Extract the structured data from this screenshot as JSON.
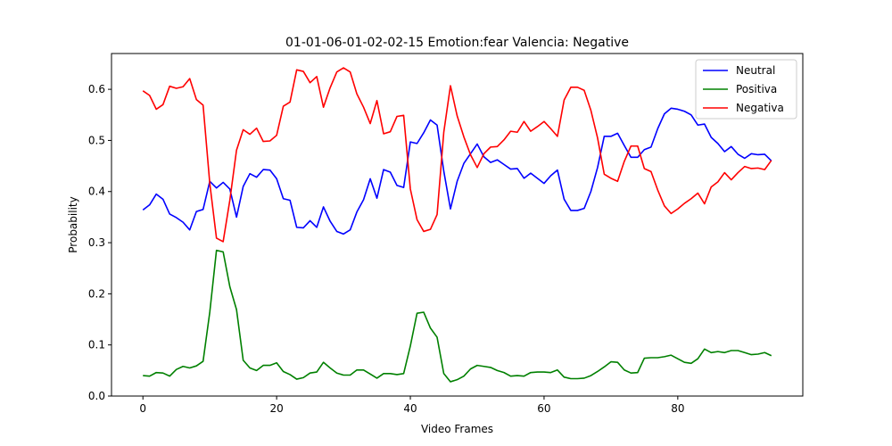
{
  "chart_data": {
    "type": "line",
    "title": "01-01-06-01-02-02-15 Emotion:fear Valencia: Negative",
    "xlabel": "Video Frames",
    "ylabel": "Probability",
    "xlim": [
      -4.7,
      98.7
    ],
    "ylim": [
      0.0,
      0.67
    ],
    "xticks": [
      0,
      20,
      40,
      60,
      80
    ],
    "yticks": [
      0.0,
      0.1,
      0.2,
      0.3,
      0.4,
      0.5,
      0.6
    ],
    "legend_position": "upper-right",
    "grid": false,
    "x": [
      0,
      1,
      2,
      3,
      4,
      5,
      6,
      7,
      8,
      9,
      10,
      11,
      12,
      13,
      14,
      15,
      16,
      17,
      18,
      19,
      20,
      21,
      22,
      23,
      24,
      25,
      26,
      27,
      28,
      29,
      30,
      31,
      32,
      33,
      34,
      35,
      36,
      37,
      38,
      39,
      40,
      41,
      42,
      43,
      44,
      45,
      46,
      47,
      48,
      49,
      50,
      51,
      52,
      53,
      54,
      55,
      56,
      57,
      58,
      59,
      60,
      61,
      62,
      63,
      64,
      65,
      66,
      67,
      68,
      69,
      70,
      71,
      72,
      73,
      74,
      75,
      76,
      77,
      78,
      79,
      80,
      81,
      82,
      83,
      84,
      85,
      86,
      87,
      88,
      89,
      90,
      91,
      92,
      93,
      94
    ],
    "series": [
      {
        "name": "Neutral",
        "color": "#0000ff",
        "values": [
          0.364,
          0.374,
          0.395,
          0.385,
          0.356,
          0.349,
          0.34,
          0.325,
          0.361,
          0.365,
          0.42,
          0.407,
          0.418,
          0.405,
          0.35,
          0.41,
          0.435,
          0.428,
          0.443,
          0.442,
          0.425,
          0.386,
          0.383,
          0.33,
          0.329,
          0.343,
          0.33,
          0.37,
          0.342,
          0.322,
          0.317,
          0.325,
          0.36,
          0.384,
          0.425,
          0.387,
          0.443,
          0.438,
          0.412,
          0.408,
          0.497,
          0.494,
          0.515,
          0.54,
          0.53,
          0.44,
          0.366,
          0.42,
          0.455,
          0.474,
          0.493,
          0.468,
          0.457,
          0.462,
          0.453,
          0.444,
          0.445,
          0.426,
          0.436,
          0.426,
          0.416,
          0.431,
          0.442,
          0.385,
          0.363,
          0.363,
          0.367,
          0.4,
          0.447,
          0.508,
          0.508,
          0.514,
          0.49,
          0.467,
          0.467,
          0.482,
          0.487,
          0.523,
          0.552,
          0.563,
          0.561,
          0.557,
          0.55,
          0.53,
          0.532,
          0.506,
          0.494,
          0.478,
          0.488,
          0.473,
          0.465,
          0.474,
          0.472,
          0.473,
          0.46
        ]
      },
      {
        "name": "Positiva",
        "color": "#008000",
        "values": [
          0.04,
          0.039,
          0.046,
          0.045,
          0.039,
          0.052,
          0.058,
          0.055,
          0.059,
          0.068,
          0.164,
          0.285,
          0.282,
          0.214,
          0.169,
          0.07,
          0.055,
          0.05,
          0.06,
          0.06,
          0.065,
          0.048,
          0.042,
          0.033,
          0.036,
          0.045,
          0.047,
          0.066,
          0.055,
          0.045,
          0.041,
          0.041,
          0.051,
          0.051,
          0.043,
          0.035,
          0.044,
          0.044,
          0.042,
          0.044,
          0.098,
          0.162,
          0.164,
          0.133,
          0.115,
          0.044,
          0.028,
          0.032,
          0.039,
          0.053,
          0.06,
          0.058,
          0.056,
          0.05,
          0.046,
          0.039,
          0.04,
          0.039,
          0.046,
          0.047,
          0.047,
          0.046,
          0.051,
          0.037,
          0.034,
          0.034,
          0.035,
          0.04,
          0.048,
          0.057,
          0.067,
          0.066,
          0.051,
          0.045,
          0.046,
          0.074,
          0.075,
          0.075,
          0.077,
          0.08,
          0.073,
          0.066,
          0.064,
          0.073,
          0.092,
          0.085,
          0.087,
          0.085,
          0.089,
          0.089,
          0.085,
          0.081,
          0.082,
          0.085,
          0.079
        ]
      },
      {
        "name": "Negativa",
        "color": "#ff0000",
        "values": [
          0.597,
          0.588,
          0.561,
          0.57,
          0.606,
          0.602,
          0.605,
          0.621,
          0.58,
          0.569,
          0.416,
          0.309,
          0.302,
          0.383,
          0.481,
          0.521,
          0.512,
          0.524,
          0.498,
          0.499,
          0.51,
          0.567,
          0.575,
          0.638,
          0.635,
          0.613,
          0.625,
          0.565,
          0.603,
          0.634,
          0.642,
          0.634,
          0.591,
          0.565,
          0.533,
          0.578,
          0.513,
          0.517,
          0.547,
          0.549,
          0.405,
          0.345,
          0.322,
          0.326,
          0.355,
          0.516,
          0.607,
          0.548,
          0.507,
          0.472,
          0.447,
          0.474,
          0.487,
          0.488,
          0.501,
          0.518,
          0.516,
          0.537,
          0.518,
          0.527,
          0.537,
          0.523,
          0.508,
          0.579,
          0.604,
          0.604,
          0.598,
          0.559,
          0.505,
          0.434,
          0.426,
          0.42,
          0.459,
          0.489,
          0.489,
          0.445,
          0.439,
          0.403,
          0.372,
          0.357,
          0.366,
          0.377,
          0.386,
          0.397,
          0.376,
          0.409,
          0.419,
          0.437,
          0.423,
          0.437,
          0.449,
          0.445,
          0.446,
          0.443,
          0.461
        ]
      }
    ]
  }
}
